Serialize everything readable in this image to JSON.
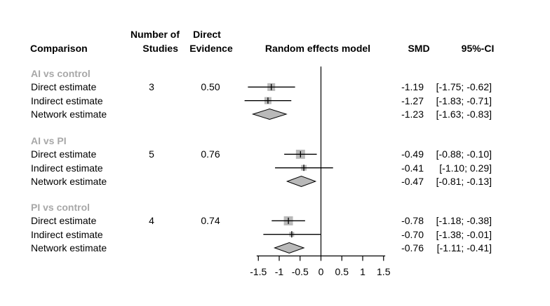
{
  "header": {
    "comparison": "Comparison",
    "number_of_line1": "Number of",
    "number_of_line2": "Studies",
    "direct_line1": "Direct",
    "direct_line2": "Evidence",
    "random_effects": "Random effects model",
    "smd": "SMD",
    "ci": "95%-CI"
  },
  "colors": {
    "square_fill": "#b9b9b9",
    "diamond_fill": "#b9b9b9",
    "diamond_stroke": "#000000",
    "group_label": "#a8a8a8",
    "text": "#000000",
    "line": "#000000"
  },
  "chart_data": {
    "type": "forest",
    "x_ticks": [
      -1.5,
      -1,
      -0.5,
      0,
      0.5,
      1,
      1.5
    ],
    "x_tick_labels": [
      "-1.5",
      "-1",
      "-0.5",
      "0",
      "0.5",
      "1",
      "1.5"
    ],
    "xlim": [
      -1.5,
      1.5
    ],
    "reference_line": 0,
    "effect_label": "Random effects model",
    "groups": [
      {
        "label": "AI vs control",
        "rows": [
          {
            "label": "Direct estimate",
            "studies": "3",
            "direct_evidence": "0.50",
            "marker": "square",
            "estimate": -1.19,
            "lower": -1.75,
            "upper": -0.62,
            "smd": "-1.19",
            "ci": "[-1.75; -0.62]",
            "square_size": 11
          },
          {
            "label": "Indirect estimate",
            "studies": "",
            "direct_evidence": "",
            "marker": "square",
            "estimate": -1.27,
            "lower": -1.83,
            "upper": -0.71,
            "smd": "-1.27",
            "ci": "[-1.83; -0.71]",
            "square_size": 10
          },
          {
            "label": "Network estimate",
            "studies": "",
            "direct_evidence": "",
            "marker": "diamond",
            "estimate": -1.23,
            "lower": -1.63,
            "upper": -0.83,
            "smd": "-1.23",
            "ci": "[-1.63; -0.83]"
          }
        ]
      },
      {
        "label": "AI vs PI",
        "rows": [
          {
            "label": "Direct estimate",
            "studies": "5",
            "direct_evidence": "0.76",
            "marker": "square",
            "estimate": -0.49,
            "lower": -0.88,
            "upper": -0.1,
            "smd": "-0.49",
            "ci": "[-0.88; -0.10]",
            "square_size": 13
          },
          {
            "label": "Indirect estimate",
            "studies": "",
            "direct_evidence": "",
            "marker": "square",
            "estimate": -0.41,
            "lower": -1.1,
            "upper": 0.29,
            "smd": "-0.41",
            "ci": "[-1.10; 0.29]",
            "square_size": 8
          },
          {
            "label": "Network estimate",
            "studies": "",
            "direct_evidence": "",
            "marker": "diamond",
            "estimate": -0.47,
            "lower": -0.81,
            "upper": -0.13,
            "smd": "-0.47",
            "ci": "[-0.81; -0.13]"
          }
        ]
      },
      {
        "label": "PI vs control",
        "rows": [
          {
            "label": "Direct estimate",
            "studies": "4",
            "direct_evidence": "0.74",
            "marker": "square",
            "estimate": -0.78,
            "lower": -1.18,
            "upper": -0.38,
            "smd": "-0.78",
            "ci": "[-1.18; -0.38]",
            "square_size": 13
          },
          {
            "label": "Indirect estimate",
            "studies": "",
            "direct_evidence": "",
            "marker": "square",
            "estimate": -0.7,
            "lower": -1.38,
            "upper": -0.01,
            "smd": "-0.70",
            "ci": "[-1.38; -0.01]",
            "square_size": 7
          },
          {
            "label": "Network estimate",
            "studies": "",
            "direct_evidence": "",
            "marker": "diamond",
            "estimate": -0.76,
            "lower": -1.11,
            "upper": -0.41,
            "smd": "-0.76",
            "ci": "[-1.11; -0.41]"
          }
        ]
      }
    ]
  }
}
